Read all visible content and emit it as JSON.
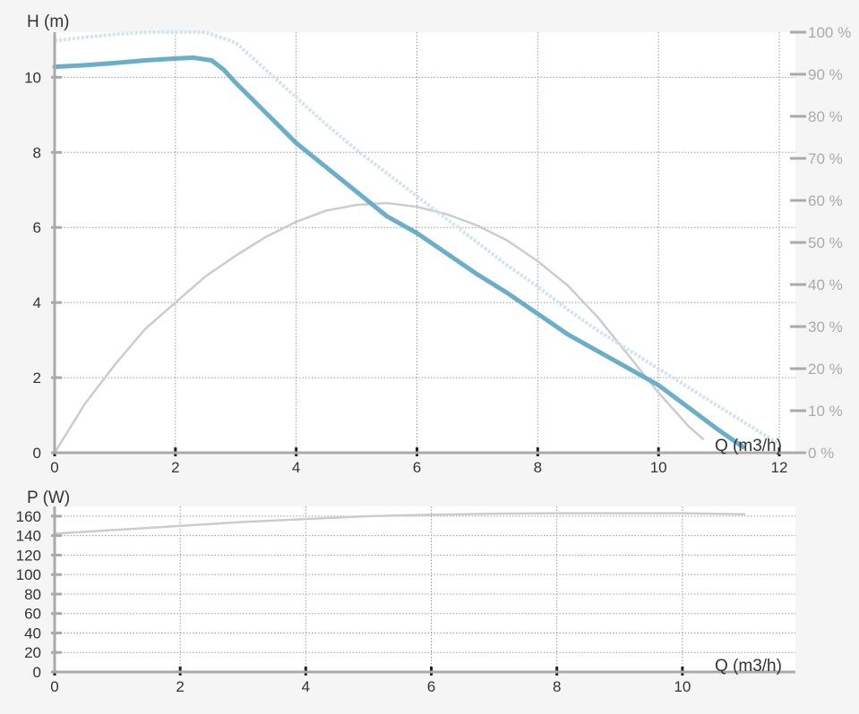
{
  "chart_data": [
    {
      "type": "line",
      "ylabel": "H (m)",
      "xlabel": "Q (m3/h)",
      "xlim": [
        0,
        12
      ],
      "ylim": [
        0,
        11.2
      ],
      "x_ticks": [
        "0",
        "2",
        "4",
        "6",
        "8",
        "10",
        "12"
      ],
      "y_ticks": [
        "0",
        "2",
        "4",
        "6",
        "8",
        "10"
      ],
      "y2_ticks": [
        "0 %",
        "10 %",
        "20 %",
        "30 %",
        "40 %",
        "50 %",
        "60 %",
        "70 %",
        "80 %",
        "90 %",
        "100 %"
      ],
      "y2lim": [
        0,
        100
      ],
      "grid": true,
      "series": [
        {
          "role": "head",
          "color": "#6aaec9",
          "axis": "left",
          "x": [
            0,
            0.5,
            1,
            1.5,
            2,
            2.3,
            2.6,
            2.8,
            3,
            3.5,
            4,
            4.5,
            5,
            5.5,
            6,
            6.5,
            7,
            7.5,
            8,
            8.5,
            9,
            9.5,
            10,
            10.5,
            11,
            11.4
          ],
          "y": [
            10.28,
            10.32,
            10.38,
            10.45,
            10.5,
            10.52,
            10.45,
            10.2,
            9.85,
            9.05,
            8.25,
            7.6,
            6.95,
            6.3,
            5.85,
            5.3,
            4.75,
            4.25,
            3.7,
            3.15,
            2.7,
            2.25,
            1.8,
            1.2,
            0.6,
            0.15
          ]
        },
        {
          "role": "efficiency-dotted",
          "color": "#cfe4ef",
          "axis": "right",
          "x": [
            0,
            0.5,
            1,
            1.5,
            2,
            2.5,
            3,
            3.5,
            4,
            4.5,
            5,
            5.5,
            6,
            6.5,
            7,
            7.5,
            8,
            8.5,
            9,
            9.5,
            10,
            10.5,
            11,
            11.5,
            12
          ],
          "y": [
            98,
            98.8,
            99.5,
            100,
            100,
            100,
            97.5,
            91,
            84.5,
            78,
            72,
            66.5,
            61,
            55.5,
            50,
            44.5,
            39.5,
            34,
            29,
            24.5,
            20,
            15.5,
            11,
            6.5,
            2
          ]
        },
        {
          "role": "efficiency",
          "color": "#cccccc",
          "axis": "left",
          "x": [
            0,
            0.5,
            1,
            1.5,
            2,
            2.5,
            3,
            3.5,
            4,
            4.5,
            5,
            5.5,
            6,
            6.5,
            7,
            7.5,
            8,
            8.5,
            9,
            9.5,
            10,
            10.5,
            10.75
          ],
          "y": [
            0,
            1.3,
            2.35,
            3.3,
            4.0,
            4.7,
            5.25,
            5.75,
            6.15,
            6.45,
            6.6,
            6.65,
            6.55,
            6.35,
            6.05,
            5.65,
            5.1,
            4.45,
            3.6,
            2.6,
            1.6,
            0.7,
            0.35
          ]
        }
      ]
    },
    {
      "type": "line",
      "ylabel": "P (W)",
      "xlabel": "Q (m3/h)",
      "xlim": [
        0,
        11.8
      ],
      "ylim": [
        0,
        170
      ],
      "x_ticks": [
        "0",
        "2",
        "4",
        "6",
        "8",
        "10"
      ],
      "y_ticks": [
        "0",
        "20",
        "40",
        "60",
        "80",
        "100",
        "120",
        "140",
        "160"
      ],
      "grid": true,
      "series": [
        {
          "role": "power",
          "color": "#cccccc",
          "x": [
            0,
            1,
            2,
            3,
            4,
            5,
            6,
            7,
            8,
            9,
            10,
            11
          ],
          "y": [
            142,
            146,
            150,
            154,
            157,
            160,
            161.5,
            162.5,
            163,
            163,
            163,
            162
          ]
        }
      ]
    }
  ]
}
